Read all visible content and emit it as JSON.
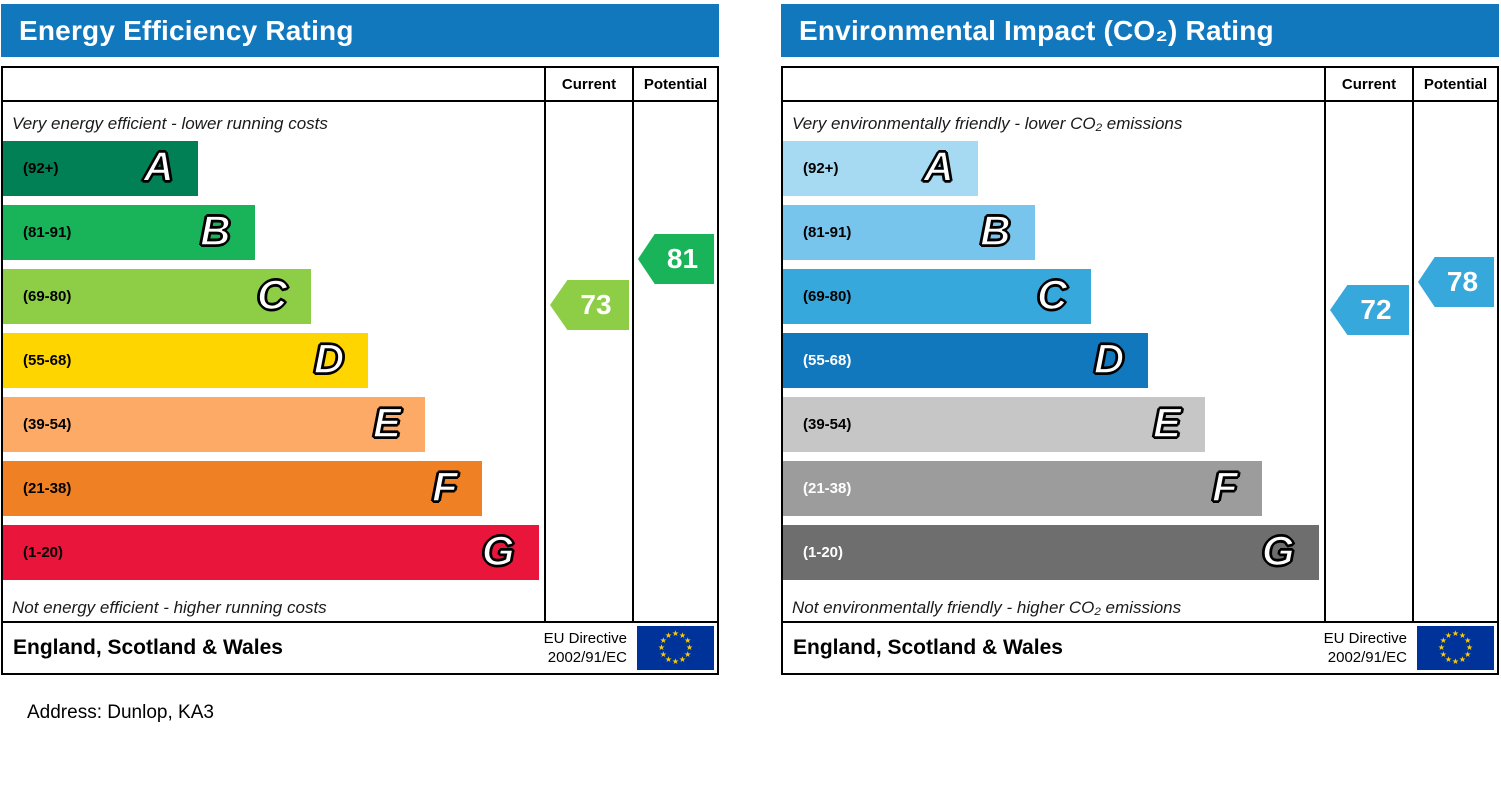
{
  "page": {
    "address_line": "Address: Dunlop, KA3"
  },
  "charts": [
    {
      "title": "Energy Efficiency Rating",
      "columns": {
        "current": "Current",
        "potential": "Potential"
      },
      "top_caption": "Very energy efficient - lower running costs",
      "bottom_caption": "Not energy efficient - higher running costs",
      "bands": [
        {
          "letter": "A",
          "range_label": "(92+)",
          "min": 92,
          "max": 100,
          "color": "#008054",
          "text_color": "#000000",
          "width_pct": 36
        },
        {
          "letter": "B",
          "range_label": "(81-91)",
          "min": 81,
          "max": 91,
          "color": "#19b459",
          "text_color": "#000000",
          "width_pct": 46.5
        },
        {
          "letter": "C",
          "range_label": "(69-80)",
          "min": 69,
          "max": 80,
          "color": "#8dce46",
          "text_color": "#000000",
          "width_pct": 57
        },
        {
          "letter": "D",
          "range_label": "(55-68)",
          "min": 55,
          "max": 68,
          "color": "#ffd500",
          "text_color": "#000000",
          "width_pct": 67.5
        },
        {
          "letter": "E",
          "range_label": "(39-54)",
          "min": 39,
          "max": 54,
          "color": "#fcaa65",
          "text_color": "#000000",
          "width_pct": 78
        },
        {
          "letter": "F",
          "range_label": "(21-38)",
          "min": 21,
          "max": 38,
          "color": "#ef8023",
          "text_color": "#000000",
          "width_pct": 88.5
        },
        {
          "letter": "G",
          "range_label": "(1-20)",
          "min": 1,
          "max": 20,
          "color": "#e9153b",
          "text_color": "#000000",
          "width_pct": 99
        }
      ],
      "current": {
        "value": 73,
        "color": "#8dce46"
      },
      "potential": {
        "value": 81,
        "color": "#19b459"
      },
      "footer": {
        "region": "England, Scotland & Wales",
        "directive_line1": "EU Directive",
        "directive_line2": "2002/91/EC"
      }
    },
    {
      "title": "Environmental Impact (CO₂) Rating",
      "columns": {
        "current": "Current",
        "potential": "Potential"
      },
      "top_caption": "Very environmentally friendly - lower CO₂ emissions",
      "bottom_caption": "Not environmentally friendly - higher CO₂ emissions",
      "bands": [
        {
          "letter": "A",
          "range_label": "(92+)",
          "min": 92,
          "max": 100,
          "color": "#a6d9f2",
          "text_color": "#000000",
          "width_pct": 36
        },
        {
          "letter": "B",
          "range_label": "(81-91)",
          "min": 81,
          "max": 91,
          "color": "#77c5ec",
          "text_color": "#000000",
          "width_pct": 46.5
        },
        {
          "letter": "C",
          "range_label": "(69-80)",
          "min": 69,
          "max": 80,
          "color": "#37a8dc",
          "text_color": "#000000",
          "width_pct": 57
        },
        {
          "letter": "D",
          "range_label": "(55-68)",
          "min": 55,
          "max": 68,
          "color": "#1278be",
          "text_color": "#ffffff",
          "width_pct": 67.5
        },
        {
          "letter": "E",
          "range_label": "(39-54)",
          "min": 39,
          "max": 54,
          "color": "#c6c6c6",
          "text_color": "#000000",
          "width_pct": 78
        },
        {
          "letter": "F",
          "range_label": "(21-38)",
          "min": 21,
          "max": 38,
          "color": "#9c9c9c",
          "text_color": "#ffffff",
          "width_pct": 88.5
        },
        {
          "letter": "G",
          "range_label": "(1-20)",
          "min": 1,
          "max": 20,
          "color": "#6e6e6e",
          "text_color": "#ffffff",
          "width_pct": 99
        }
      ],
      "current": {
        "value": 72,
        "color": "#37a8dc"
      },
      "potential": {
        "value": 78,
        "color": "#37a8dc"
      },
      "footer": {
        "region": "England, Scotland & Wales",
        "directive_line1": "EU Directive",
        "directive_line2": "2002/91/EC"
      }
    }
  ],
  "chart_data": [
    {
      "type": "bar",
      "title": "Energy Efficiency Rating",
      "categories": [
        "A (92+)",
        "B (81-91)",
        "C (69-80)",
        "D (55-68)",
        "E (39-54)",
        "F (21-38)",
        "G (1-20)"
      ],
      "values": [
        36,
        46.5,
        57,
        67.5,
        78,
        88.5,
        99
      ],
      "markers": {
        "current": 73,
        "potential": 81
      },
      "annotations": [
        "Very energy efficient - lower running costs",
        "Not energy efficient - higher running costs"
      ],
      "footer": "England, Scotland & Wales — EU Directive 2002/91/EC",
      "note": "Band bar lengths are the fixed EPC scale graphic (percent of plot width); markers are the property ratings."
    },
    {
      "type": "bar",
      "title": "Environmental Impact (CO₂) Rating",
      "categories": [
        "A (92+)",
        "B (81-91)",
        "C (69-80)",
        "D (55-68)",
        "E (39-54)",
        "F (21-38)",
        "G (1-20)"
      ],
      "values": [
        36,
        46.5,
        57,
        67.5,
        78,
        88.5,
        99
      ],
      "markers": {
        "current": 72,
        "potential": 78
      },
      "annotations": [
        "Very environmentally friendly - lower CO₂ emissions",
        "Not environmentally friendly - higher CO₂ emissions"
      ],
      "footer": "England, Scotland & Wales — EU Directive 2002/91/EC",
      "note": "Band bar lengths are the fixed EPC scale graphic (percent of plot width); markers are the property ratings."
    }
  ]
}
